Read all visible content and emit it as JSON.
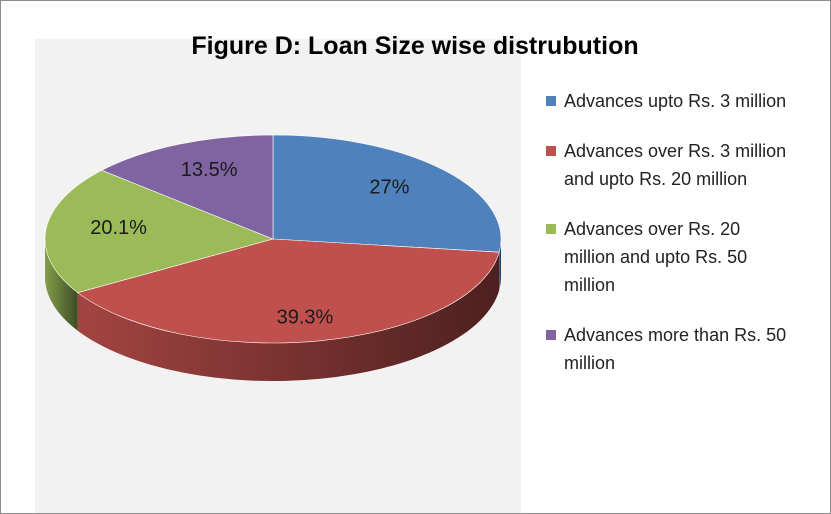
{
  "chart_data": {
    "type": "pie",
    "title": "Figure D: Loan Size wise distrubution",
    "categories": [
      "Advances upto Rs. 3 million",
      "Advances over Rs. 3 million and upto Rs. 20 million",
      "Advances over Rs. 20 million and upto Rs. 50 million",
      "Advances more than Rs. 50 million"
    ],
    "values": [
      27,
      39.3,
      20.1,
      13.5
    ],
    "value_labels": [
      "27%",
      "39.3%",
      "20.1%",
      "13.5%"
    ],
    "colors": [
      "#4f81bd",
      "#c0504d",
      "#9bbb59",
      "#8064a2"
    ],
    "legend": "right"
  }
}
